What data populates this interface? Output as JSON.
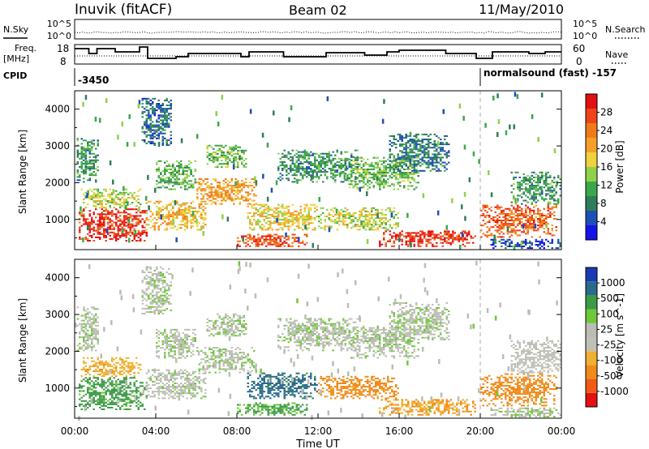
{
  "header": {
    "station": "Inuvik (fitACF)",
    "beam": "Beam 02",
    "date": "11/May/2010"
  },
  "colors": {
    "power_scale": [
      "#1414e6",
      "#1e4fb4",
      "#2e7d5a",
      "#3aa84a",
      "#8fd14a",
      "#f0d23c",
      "#f5a02a",
      "#f07a1a",
      "#ee4418",
      "#e21010"
    ],
    "velocity_scale": [
      "#e21010",
      "#f05a14",
      "#f08a1a",
      "#f0b030",
      "#c0c0b8",
      "#bcbcb4",
      "#6ec83a",
      "#3c9a46",
      "#2a6a8a",
      "#1a3ab4"
    ],
    "line": "#000000"
  },
  "chart_data": [
    {
      "type": "line",
      "panel": "noise",
      "left_labels": [
        "N.Sky",
        "10^5",
        "10^0"
      ],
      "right_labels": [
        "10^5",
        "10^0",
        "N.Search"
      ],
      "series": [
        {
          "name": "N.Sky",
          "style": "solid"
        },
        {
          "name": "N.Search",
          "style": "dotted"
        }
      ],
      "xlim": [
        "00:00",
        "24:00"
      ]
    },
    {
      "type": "line",
      "panel": "frequency",
      "left_labels": [
        "Freq.",
        "[MHz]",
        "18",
        "8"
      ],
      "right_labels": [
        "60",
        "0",
        "Nave"
      ],
      "ylim_left": [
        8,
        18
      ],
      "ylim_right": [
        0,
        60
      ],
      "series": [
        {
          "name": "Freq.",
          "style": "solid"
        },
        {
          "name": "Nave",
          "style": "dotted"
        }
      ]
    },
    {
      "type": "table",
      "panel": "cpid",
      "label": "CPID",
      "entries": [
        {
          "from_hour": 0,
          "text": "-3450"
        },
        {
          "from_hour": 20.0,
          "text": "normalsound (fast) -157"
        }
      ]
    },
    {
      "type": "heatmap",
      "panel": "power",
      "ylabel": "Slant Range [km]",
      "yticks": [
        1000,
        2000,
        3000,
        4000
      ],
      "ylim": [
        180,
        4500
      ],
      "xlim": [
        0,
        24
      ],
      "colorbar": {
        "label": "Power [dB]",
        "ticks": [
          "4",
          "8",
          "12",
          "16",
          "20",
          "24",
          "28"
        ],
        "range": [
          0,
          30
        ]
      },
      "echo_regions": [
        {
          "t0": 0.2,
          "t1": 3.6,
          "r0": 400,
          "r1": 1300,
          "level": 27
        },
        {
          "t0": 0.3,
          "t1": 3.3,
          "r0": 1300,
          "r1": 1800,
          "level": 15
        },
        {
          "t0": 0.1,
          "t1": 1.2,
          "r0": 2000,
          "r1": 3200,
          "level": 9
        },
        {
          "t0": 3.5,
          "t1": 6.5,
          "r0": 700,
          "r1": 1500,
          "level": 18
        },
        {
          "t0": 4.0,
          "t1": 6.0,
          "r0": 1800,
          "r1": 2600,
          "level": 11
        },
        {
          "t0": 3.3,
          "t1": 4.8,
          "r0": 3000,
          "r1": 4300,
          "level": 6
        },
        {
          "t0": 6.0,
          "t1": 9.0,
          "r0": 1400,
          "r1": 2100,
          "level": 20
        },
        {
          "t0": 6.5,
          "t1": 8.5,
          "r0": 2400,
          "r1": 3000,
          "level": 12
        },
        {
          "t0": 8.0,
          "t1": 11.5,
          "r0": 250,
          "r1": 600,
          "level": 25
        },
        {
          "t0": 8.5,
          "t1": 12.0,
          "r0": 700,
          "r1": 1400,
          "level": 17
        },
        {
          "t0": 10.0,
          "t1": 14.0,
          "r0": 2000,
          "r1": 2900,
          "level": 9
        },
        {
          "t0": 12.0,
          "t1": 16.0,
          "r0": 700,
          "r1": 1300,
          "level": 15
        },
        {
          "t0": 13.5,
          "t1": 17.0,
          "r0": 1800,
          "r1": 2700,
          "level": 12
        },
        {
          "t0": 15.0,
          "t1": 19.8,
          "r0": 250,
          "r1": 700,
          "level": 27
        },
        {
          "t0": 15.5,
          "t1": 18.5,
          "r0": 2300,
          "r1": 3300,
          "level": 7
        },
        {
          "t0": 20.0,
          "t1": 23.8,
          "r0": 500,
          "r1": 1400,
          "level": 24
        },
        {
          "t0": 21.5,
          "t1": 24.0,
          "r0": 1400,
          "r1": 2300,
          "level": 9
        },
        {
          "t0": 20.5,
          "t1": 24.0,
          "r0": 200,
          "r1": 450,
          "level": 4
        }
      ]
    },
    {
      "type": "heatmap",
      "panel": "velocity",
      "ylabel": "Slant Range [km]",
      "yticks": [
        1000,
        2000,
        3000,
        4000
      ],
      "ylim": [
        180,
        4500
      ],
      "xlim": [
        0,
        24
      ],
      "xticks": [
        "00:00",
        "04:00",
        "08:00",
        "12:00",
        "16:00",
        "20:00",
        "00:00"
      ],
      "xlabel": "Time UT",
      "colorbar": {
        "label": "Velocity [m s^-1]",
        "ticks": [
          "-1000",
          "-500",
          "-100",
          "-25",
          "25",
          "100",
          "500",
          "1000"
        ],
        "range": [
          -1200,
          1200
        ]
      },
      "echo_regions": [
        {
          "t0": 0.2,
          "t1": 3.6,
          "r0": 400,
          "r1": 1300,
          "level": 150
        },
        {
          "t0": 0.3,
          "t1": 3.3,
          "r0": 1300,
          "r1": 1800,
          "level": -200
        },
        {
          "t0": 0.1,
          "t1": 1.2,
          "r0": 2000,
          "r1": 3200,
          "level": 0
        },
        {
          "t0": 3.5,
          "t1": 6.5,
          "r0": 700,
          "r1": 1500,
          "level": -20
        },
        {
          "t0": 4.0,
          "t1": 6.0,
          "r0": 1800,
          "r1": 2600,
          "level": 0
        },
        {
          "t0": 3.3,
          "t1": 4.8,
          "r0": 3000,
          "r1": 4300,
          "level": 5
        },
        {
          "t0": 6.0,
          "t1": 9.0,
          "r0": 1400,
          "r1": 2100,
          "level": 0
        },
        {
          "t0": 6.5,
          "t1": 8.5,
          "r0": 2400,
          "r1": 3000,
          "level": 0
        },
        {
          "t0": 8.0,
          "t1": 11.5,
          "r0": 250,
          "r1": 600,
          "level": 120
        },
        {
          "t0": 8.5,
          "t1": 12.0,
          "r0": 700,
          "r1": 1400,
          "level": 300
        },
        {
          "t0": 10.0,
          "t1": 14.0,
          "r0": 2000,
          "r1": 2900,
          "level": 0
        },
        {
          "t0": 12.0,
          "t1": 16.0,
          "r0": 700,
          "r1": 1300,
          "level": -300
        },
        {
          "t0": 13.5,
          "t1": 17.0,
          "r0": 1800,
          "r1": 2700,
          "level": 0
        },
        {
          "t0": 15.0,
          "t1": 19.8,
          "r0": 250,
          "r1": 700,
          "level": -250
        },
        {
          "t0": 15.5,
          "t1": 18.5,
          "r0": 2300,
          "r1": 3300,
          "level": 0
        },
        {
          "t0": 20.0,
          "t1": 23.8,
          "r0": 500,
          "r1": 1400,
          "level": -350
        },
        {
          "t0": 21.5,
          "t1": 24.0,
          "r0": 1400,
          "r1": 2300,
          "level": -40
        },
        {
          "t0": 20.5,
          "t1": 24.0,
          "r0": 200,
          "r1": 450,
          "level": 0
        }
      ]
    }
  ]
}
